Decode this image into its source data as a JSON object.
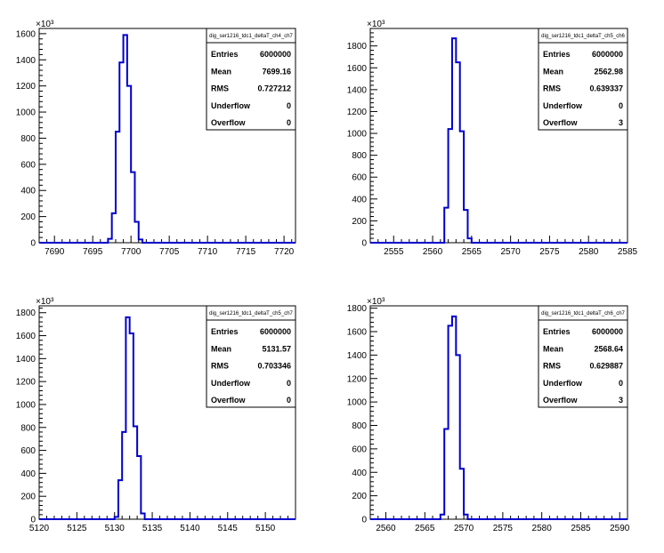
{
  "chart_data": [
    {
      "type": "bar",
      "title": "dig_ser1216_tdc1_deltaT_ch4_ch7",
      "xlim": [
        7688,
        7721.5
      ],
      "ylim": [
        0,
        1640
      ],
      "multiplier_label": "×10³",
      "xticks": [
        7690,
        7695,
        7700,
        7705,
        7710,
        7715,
        7720
      ],
      "yticks": [
        0,
        200,
        400,
        600,
        800,
        1000,
        1200,
        1400,
        1600
      ],
      "ytick_labels": [
        "0",
        "200",
        "400",
        "600",
        "800",
        "1000",
        "1200",
        "1400",
        "1600"
      ],
      "bin_width": 0.5,
      "bins": [
        {
          "x": 7697.0,
          "y": 30
        },
        {
          "x": 7697.5,
          "y": 225
        },
        {
          "x": 7698.0,
          "y": 850
        },
        {
          "x": 7698.5,
          "y": 1380
        },
        {
          "x": 7699.0,
          "y": 1590
        },
        {
          "x": 7699.5,
          "y": 1200
        },
        {
          "x": 7700.0,
          "y": 540
        },
        {
          "x": 7700.5,
          "y": 160
        },
        {
          "x": 7701.0,
          "y": 25
        }
      ],
      "stats": {
        "Entries": "6000000",
        "Mean": "7699.16",
        "RMS": "0.727212",
        "Underflow": "0",
        "Overflow": "0"
      }
    },
    {
      "type": "bar",
      "title": "dig_ser1216_tdc1_deltaT_ch5_ch6",
      "xlim": [
        2552,
        2585
      ],
      "ylim": [
        0,
        1960
      ],
      "multiplier_label": "×10³",
      "xticks": [
        2555,
        2560,
        2565,
        2570,
        2575,
        2580,
        2585
      ],
      "yticks": [
        0,
        200,
        400,
        600,
        800,
        1000,
        1200,
        1400,
        1600,
        1800
      ],
      "ytick_labels": [
        "0",
        "200",
        "400",
        "600",
        "800",
        "1000",
        "1200",
        "1400",
        "1600",
        "1800"
      ],
      "bin_width": 0.5,
      "bins": [
        {
          "x": 2561.5,
          "y": 320
        },
        {
          "x": 2562.0,
          "y": 1040
        },
        {
          "x": 2562.5,
          "y": 1870
        },
        {
          "x": 2563.0,
          "y": 1650
        },
        {
          "x": 2563.5,
          "y": 1020
        },
        {
          "x": 2564.0,
          "y": 300
        },
        {
          "x": 2564.5,
          "y": 40
        }
      ],
      "stats": {
        "Entries": "6000000",
        "Mean": "2562.98",
        "RMS": "0.639337",
        "Underflow": "0",
        "Overflow": "3"
      }
    },
    {
      "type": "bar",
      "title": "dig_ser1216_tdc1_deltaT_ch5_ch7",
      "xlim": [
        5120,
        5154
      ],
      "ylim": [
        0,
        1860
      ],
      "multiplier_label": "×10³",
      "xticks": [
        5120,
        5125,
        5130,
        5135,
        5140,
        5145,
        5150
      ],
      "yticks": [
        0,
        200,
        400,
        600,
        800,
        1000,
        1200,
        1400,
        1600,
        1800
      ],
      "ytick_labels": [
        "0",
        "200",
        "400",
        "600",
        "800",
        "1000",
        "1200",
        "1400",
        "1600",
        "1800"
      ],
      "bin_width": 0.5,
      "bins": [
        {
          "x": 5130.0,
          "y": 20
        },
        {
          "x": 5130.5,
          "y": 340
        },
        {
          "x": 5131.0,
          "y": 760
        },
        {
          "x": 5131.5,
          "y": 1760
        },
        {
          "x": 5132.0,
          "y": 1620
        },
        {
          "x": 5132.5,
          "y": 810
        },
        {
          "x": 5133.0,
          "y": 550
        },
        {
          "x": 5133.5,
          "y": 50
        }
      ],
      "stats": {
        "Entries": "6000000",
        "Mean": "5131.57",
        "RMS": "0.703346",
        "Underflow": "0",
        "Overflow": "0"
      }
    },
    {
      "type": "bar",
      "title": "dig_ser1216_tdc1_deltaT_ch6_ch7",
      "xlim": [
        2558,
        2591
      ],
      "ylim": [
        0,
        1820
      ],
      "multiplier_label": "×10³",
      "xticks": [
        2560,
        2565,
        2570,
        2575,
        2580,
        2585,
        2590
      ],
      "yticks": [
        0,
        200,
        400,
        600,
        800,
        1000,
        1200,
        1400,
        1600,
        1800
      ],
      "ytick_labels": [
        "0",
        "200",
        "400",
        "600",
        "800",
        "1000",
        "1200",
        "1400",
        "1600",
        "1800"
      ],
      "bin_width": 0.5,
      "bins": [
        {
          "x": 2567.0,
          "y": 40
        },
        {
          "x": 2567.5,
          "y": 770
        },
        {
          "x": 2568.0,
          "y": 1650
        },
        {
          "x": 2568.5,
          "y": 1730
        },
        {
          "x": 2569.0,
          "y": 1400
        },
        {
          "x": 2569.5,
          "y": 430
        },
        {
          "x": 2570.0,
          "y": 40
        }
      ],
      "stats": {
        "Entries": "6000000",
        "Mean": "2568.64",
        "RMS": "0.629887",
        "Underflow": "0",
        "Overflow": "3"
      }
    }
  ],
  "colors": {
    "histogram": "#0000cc",
    "axes": "#000000",
    "background": "#ffffff"
  }
}
